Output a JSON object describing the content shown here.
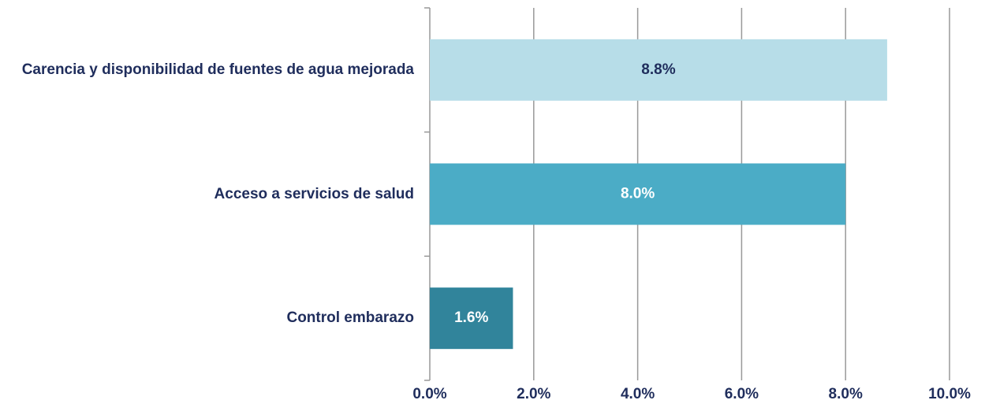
{
  "chart_data": {
    "type": "hbar",
    "categories": [
      "Carencia y disponibilidad de fuentes de agua mejorada",
      "Acceso a servicios de salud",
      "Control embarazo"
    ],
    "values": [
      8.8,
      8.0,
      1.6
    ],
    "value_labels": [
      "8.8%",
      "8.0%",
      "1.6%"
    ],
    "colors": [
      "#b7dde8",
      "#4bacc6",
      "#31849b"
    ],
    "label_colors": [
      "#1f2d5c",
      "#ffffff",
      "#ffffff"
    ],
    "xlim": [
      0,
      10
    ],
    "xticks": [
      {
        "value": 0,
        "label": "0.0%"
      },
      {
        "value": 2,
        "label": "2.0%"
      },
      {
        "value": 4,
        "label": "4.0%"
      },
      {
        "value": 6,
        "label": "6.0%"
      },
      {
        "value": 8,
        "label": "8.0%"
      },
      {
        "value": 10,
        "label": "10.0%"
      }
    ],
    "grid": true
  }
}
